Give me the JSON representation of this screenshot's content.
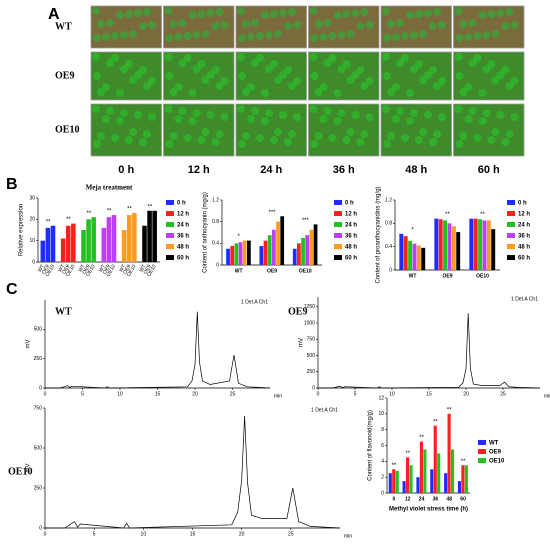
{
  "panel_a": {
    "label": "A",
    "rows": [
      "WT",
      "OE9",
      "OE10"
    ],
    "columns": [
      "0 h",
      "12 h",
      "24 h",
      "36 h",
      "48 h",
      "60 h"
    ]
  },
  "panel_b": {
    "label": "B"
  },
  "panel_c": {
    "label": "C",
    "labels": [
      "WT",
      "OE9",
      "OE10"
    ]
  },
  "chart_data": [
    {
      "type": "bar",
      "title": "Meja treatment",
      "y_label": "Relative expression",
      "categories": [
        "WT",
        "OE9",
        "OE10"
      ],
      "group_by": "series",
      "series": [
        {
          "name": "0 h",
          "color": "#1f2bff",
          "values": [
            10,
            16,
            17
          ]
        },
        {
          "name": "12 h",
          "color": "#ff1f1f",
          "values": [
            11,
            17,
            18
          ]
        },
        {
          "name": "24 h",
          "color": "#22c022",
          "values": [
            15,
            20,
            21
          ]
        },
        {
          "name": "36 h",
          "color": "#c03cff",
          "values": [
            16,
            21,
            22
          ]
        },
        {
          "name": "48 h",
          "color": "#ff9a1f",
          "values": [
            15,
            22,
            23
          ]
        },
        {
          "name": "60 h",
          "color": "#000000",
          "values": [
            17,
            24,
            24
          ]
        }
      ],
      "ylim": [
        0,
        30
      ],
      "yticks": [
        0,
        10,
        20,
        30
      ],
      "annotations": [
        "**",
        "**",
        "**",
        "**",
        "**",
        "**"
      ]
    },
    {
      "type": "bar",
      "y_label": "Content of anthocyanin (mg/g)",
      "categories": [
        "WT",
        "OE9",
        "OE10"
      ],
      "group_by": "category",
      "series": [
        {
          "name": "0 h",
          "color": "#1f2bff",
          "values": [
            0.3,
            0.35,
            0.3
          ]
        },
        {
          "name": "12 h",
          "color": "#ff1f1f",
          "values": [
            0.35,
            0.45,
            0.4
          ]
        },
        {
          "name": "24 h",
          "color": "#22c022",
          "values": [
            0.4,
            0.55,
            0.5
          ]
        },
        {
          "name": "36 h",
          "color": "#c03cff",
          "values": [
            0.42,
            0.65,
            0.55
          ]
        },
        {
          "name": "48 h",
          "color": "#ff9a1f",
          "values": [
            0.45,
            0.8,
            0.65
          ]
        },
        {
          "name": "60 h",
          "color": "#000000",
          "values": [
            0.45,
            0.9,
            0.75
          ]
        }
      ],
      "ylim": [
        0,
        1.2
      ],
      "yticks": [
        0,
        0.4,
        0.8,
        1.2
      ],
      "annotations": [
        "*",
        "***",
        "***"
      ]
    },
    {
      "type": "bar",
      "y_label": "Content of proanthocyanidins (mg/g)",
      "categories": [
        "WT",
        "OE9",
        "OE10"
      ],
      "group_by": "category",
      "series": [
        {
          "name": "0 h",
          "color": "#1f2bff",
          "values": [
            0.62,
            0.88,
            0.88
          ]
        },
        {
          "name": "12 h",
          "color": "#ff1f1f",
          "values": [
            0.58,
            0.87,
            0.88
          ]
        },
        {
          "name": "24 h",
          "color": "#22c022",
          "values": [
            0.5,
            0.85,
            0.87
          ]
        },
        {
          "name": "36 h",
          "color": "#c03cff",
          "values": [
            0.45,
            0.8,
            0.85
          ]
        },
        {
          "name": "48 h",
          "color": "#ff9a1f",
          "values": [
            0.42,
            0.75,
            0.85
          ]
        },
        {
          "name": "60 h",
          "color": "#000000",
          "values": [
            0.38,
            0.65,
            0.7
          ]
        }
      ],
      "ylim": [
        0,
        1.2
      ],
      "yticks": [
        0,
        0.4,
        0.8,
        1.2
      ],
      "annotations": [
        "*",
        "**",
        "**"
      ]
    },
    {
      "type": "line",
      "y_label": "mV",
      "x_label": "min",
      "annotation": "1 Det.A Ch1",
      "x": [
        0,
        2,
        3,
        3.3,
        3.6,
        8,
        8.3,
        8.6,
        19,
        19.6,
        20,
        20.3,
        20.6,
        21,
        22,
        24.6,
        25.2,
        25.8,
        27,
        30
      ],
      "values": [
        0,
        0,
        20,
        5,
        15,
        0,
        12,
        0,
        10,
        60,
        200,
        650,
        220,
        60,
        30,
        60,
        280,
        40,
        10,
        0
      ],
      "xlim": [
        0,
        30
      ],
      "ylim": [
        0,
        750
      ],
      "yticks": [
        0,
        250,
        500
      ],
      "xticks": [
        0,
        5,
        10,
        15,
        20,
        25
      ]
    },
    {
      "type": "line",
      "y_label": "mV",
      "x_label": "min",
      "annotation": "1 Det.A Ch1",
      "x": [
        0,
        2,
        3,
        3.3,
        3.6,
        8,
        8.3,
        8.6,
        19,
        19.6,
        20,
        20.3,
        20.6,
        21,
        22,
        24.6,
        25.2,
        25.8,
        27,
        30
      ],
      "values": [
        0,
        0,
        30,
        5,
        20,
        0,
        20,
        0,
        10,
        80,
        300,
        1150,
        300,
        60,
        40,
        40,
        90,
        20,
        10,
        0
      ],
      "xlim": [
        0,
        30
      ],
      "ylim": [
        0,
        1400
      ],
      "yticks": [
        0,
        250,
        500,
        750,
        1000,
        1250
      ],
      "xticks": [
        0,
        5,
        10,
        15,
        20,
        25
      ]
    },
    {
      "type": "line",
      "y_label": "mV",
      "x_label": "min",
      "annotation": "1 Det.A Ch1",
      "x": [
        0,
        2,
        3,
        3.3,
        3.6,
        8,
        8.3,
        8.6,
        19,
        19.6,
        20,
        20.3,
        20.6,
        21,
        22,
        24.6,
        25.2,
        25.8,
        27,
        30
      ],
      "values": [
        0,
        0,
        40,
        5,
        25,
        0,
        30,
        0,
        20,
        100,
        300,
        700,
        280,
        80,
        60,
        60,
        250,
        40,
        10,
        0
      ],
      "xlim": [
        0,
        30
      ],
      "ylim": [
        0,
        750
      ],
      "yticks": [
        0,
        250,
        500,
        750
      ],
      "xticks": [
        0,
        5,
        10,
        15,
        20,
        25
      ]
    },
    {
      "type": "bar",
      "y_label": "Content of flavonoid(mg/g)",
      "x_label": "Methyl violet stress time (h)",
      "categories": [
        "0",
        "12",
        "24",
        "36",
        "48",
        "60"
      ],
      "group_by": "category",
      "series": [
        {
          "name": "WT",
          "color": "#1f2bff",
          "values": [
            2.5,
            1.5,
            2,
            3,
            2.5,
            1.5
          ]
        },
        {
          "name": "OE9",
          "color": "#ff1f1f",
          "values": [
            3,
            4.5,
            6.5,
            8.5,
            10,
            3.5
          ]
        },
        {
          "name": "OE10",
          "color": "#22c022",
          "values": [
            2.8,
            3.5,
            5.5,
            5,
            5.5,
            3.5
          ]
        }
      ],
      "ylim": [
        0,
        12
      ],
      "yticks": [
        0,
        2,
        4,
        6,
        8,
        10,
        12
      ],
      "annotations": [
        "**",
        "**",
        "**",
        "**",
        "**",
        "**"
      ]
    }
  ]
}
